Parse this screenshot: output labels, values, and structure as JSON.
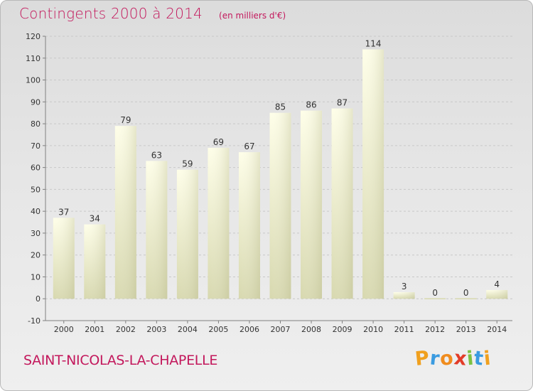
{
  "header": {
    "title": "Contingents 2000 à 2014",
    "subtitle": "(en milliers d'€)"
  },
  "commune": "SAINT-NICOLAS-LA-CHAPELLE",
  "logo": {
    "letters": [
      "P",
      "r",
      "o",
      "x",
      "i",
      "t",
      "i"
    ],
    "colors": [
      "#f0a01e",
      "#3a9be0",
      "#f08c1e",
      "#e23c28",
      "#7cc242",
      "#3a9be0",
      "#f0a01e"
    ]
  },
  "colors": {
    "bar_top": "#fefee8",
    "bar_bottom": "#d7d8ae",
    "axis": "#808080",
    "gridline": "#c8c8c8"
  },
  "chart_data": {
    "type": "bar",
    "categories": [
      "2000",
      "2001",
      "2002",
      "2003",
      "2004",
      "2005",
      "2006",
      "2007",
      "2008",
      "2009",
      "2010",
      "2011",
      "2012",
      "2013",
      "2014"
    ],
    "values": [
      37,
      34,
      79,
      63,
      59,
      69,
      67,
      85,
      86,
      87,
      114,
      3,
      0,
      0,
      4
    ],
    "ylim": [
      -10,
      120
    ],
    "yticks": [
      -10,
      0,
      10,
      20,
      30,
      40,
      50,
      60,
      70,
      80,
      90,
      100,
      110,
      120
    ],
    "grid": "horizontal dashed",
    "legend": "none"
  }
}
